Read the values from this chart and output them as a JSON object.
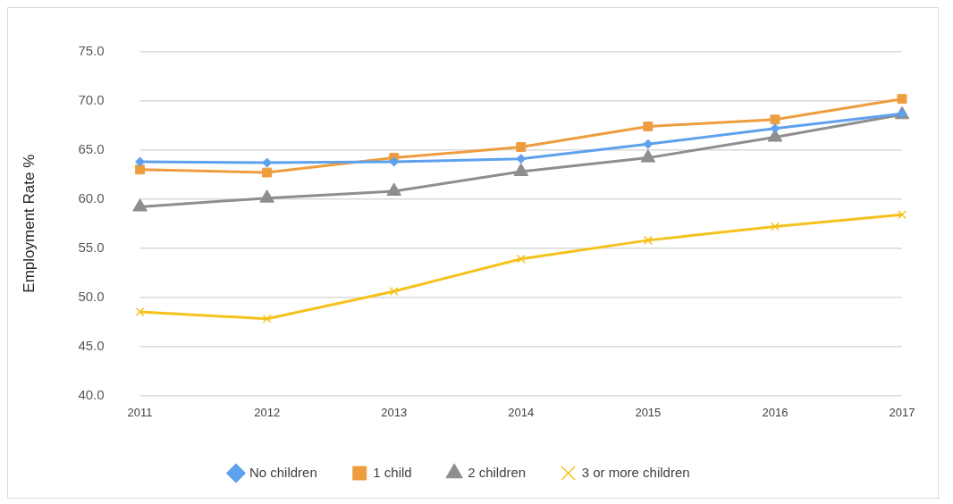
{
  "chart_data": {
    "type": "line",
    "ylabel": "Employment Rate %",
    "categories": [
      "2011",
      "2012",
      "2013",
      "2014",
      "2015",
      "2016",
      "2017"
    ],
    "series": [
      {
        "name": "No children",
        "color": "#5ea1ee",
        "marker": "diamond",
        "values": [
          63.8,
          63.7,
          63.8,
          64.1,
          65.6,
          67.2,
          68.7
        ]
      },
      {
        "name": "1 child",
        "color": "#ee9d3e",
        "marker": "square",
        "values": [
          63.0,
          62.7,
          64.2,
          65.3,
          67.4,
          68.1,
          70.2
        ]
      },
      {
        "name": "2 children",
        "color": "#8e8e8e",
        "marker": "triangle",
        "values": [
          59.2,
          60.1,
          60.8,
          62.8,
          64.2,
          66.3,
          68.6
        ]
      },
      {
        "name": "3 or more children",
        "color": "#f5c21b",
        "marker": "cross",
        "values": [
          48.5,
          47.8,
          50.6,
          53.9,
          55.8,
          57.2,
          58.4
        ]
      }
    ],
    "ylim": [
      40,
      75
    ],
    "yticks": [
      {
        "value": 40,
        "label": "40.0"
      },
      {
        "value": 45,
        "label": "45.0"
      },
      {
        "value": 50,
        "label": "50.0"
      },
      {
        "value": 55,
        "label": "55.0"
      },
      {
        "value": 60,
        "label": "60.0"
      },
      {
        "value": 65,
        "label": "65.0"
      },
      {
        "value": 70,
        "label": "70.0"
      },
      {
        "value": 75,
        "label": "75.0"
      }
    ],
    "grid": "y",
    "legend": "bottom"
  }
}
